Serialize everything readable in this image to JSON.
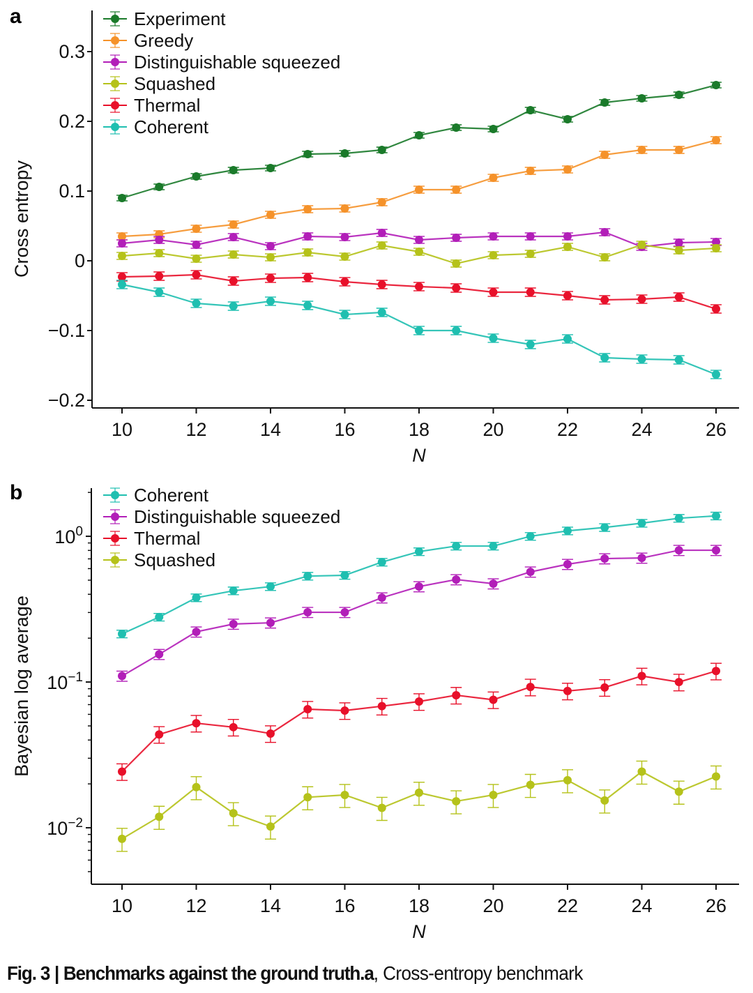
{
  "caption": {
    "figure": "Fig. 3",
    "separator": "|",
    "bold_title": "Benchmarks against the ground truth.",
    "panel_ref": "a",
    "text": ", Cross-entropy benchmark"
  },
  "chart_data": [
    {
      "panel": "a",
      "type": "line",
      "title": "",
      "xlabel": "N",
      "ylabel": "Cross entropy",
      "x": [
        10,
        11,
        12,
        13,
        14,
        15,
        16,
        17,
        18,
        19,
        20,
        21,
        22,
        23,
        24,
        25,
        26
      ],
      "xticks": [
        10,
        12,
        14,
        16,
        18,
        20,
        22,
        24,
        26
      ],
      "xlim": [
        9.2,
        26.6
      ],
      "yticks": [
        -0.2,
        -0.1,
        0,
        0.1,
        0.2,
        0.3
      ],
      "ytick_labels": [
        "−0.2",
        "−0.1",
        "0",
        "0.1",
        "0.2",
        "0.3"
      ],
      "ylim": [
        -0.211,
        0.359
      ],
      "yscale": "linear",
      "error_bars": true,
      "legend_position": "top-left",
      "series": [
        {
          "name": "Experiment",
          "color": "#1a7a2a",
          "values": [
            0.09,
            0.106,
            0.121,
            0.13,
            0.133,
            0.153,
            0.154,
            0.159,
            0.18,
            0.191,
            0.189,
            0.216,
            0.203,
            0.227,
            0.233,
            0.238,
            0.252
          ],
          "error": 0.004
        },
        {
          "name": "Greedy",
          "color": "#f5922a",
          "values": [
            0.035,
            0.038,
            0.046,
            0.052,
            0.066,
            0.074,
            0.075,
            0.084,
            0.102,
            0.102,
            0.119,
            0.129,
            0.131,
            0.152,
            0.159,
            0.159,
            0.173
          ],
          "error": 0.005
        },
        {
          "name": "Distinguishable squeezed",
          "color": "#b21eb8",
          "values": [
            0.025,
            0.03,
            0.023,
            0.034,
            0.021,
            0.035,
            0.034,
            0.04,
            0.03,
            0.033,
            0.035,
            0.035,
            0.035,
            0.041,
            0.02,
            0.026,
            0.027
          ],
          "error": 0.005
        },
        {
          "name": "Squashed",
          "color": "#b5c21a",
          "values": [
            0.007,
            0.011,
            0.003,
            0.009,
            0.005,
            0.012,
            0.006,
            0.022,
            0.013,
            -0.004,
            0.008,
            0.01,
            0.02,
            0.005,
            0.023,
            0.015,
            0.018
          ],
          "error": 0.005
        },
        {
          "name": "Thermal",
          "color": "#e8102a",
          "values": [
            -0.023,
            -0.022,
            -0.02,
            -0.029,
            -0.025,
            -0.024,
            -0.03,
            -0.034,
            -0.037,
            -0.039,
            -0.045,
            -0.045,
            -0.05,
            -0.056,
            -0.055,
            -0.052,
            -0.069
          ],
          "error": 0.006
        },
        {
          "name": "Coherent",
          "color": "#1fbfb0",
          "values": [
            -0.034,
            -0.045,
            -0.061,
            -0.065,
            -0.058,
            -0.064,
            -0.077,
            -0.074,
            -0.1,
            -0.1,
            -0.111,
            -0.12,
            -0.112,
            -0.139,
            -0.141,
            -0.142,
            -0.163
          ],
          "error": 0.006
        }
      ]
    },
    {
      "panel": "b",
      "type": "line",
      "title": "",
      "xlabel": "N",
      "ylabel": "Bayesian log average",
      "x": [
        10,
        11,
        12,
        13,
        14,
        15,
        16,
        17,
        18,
        19,
        20,
        21,
        22,
        23,
        24,
        25,
        26
      ],
      "xticks": [
        10,
        12,
        14,
        16,
        18,
        20,
        22,
        24,
        26
      ],
      "xlim": [
        9.2,
        26.6
      ],
      "yticks": [
        0.01,
        0.1,
        1
      ],
      "ytick_labels": [
        {
          "base": "10",
          "exp": "−2"
        },
        {
          "base": "10",
          "exp": "−1"
        },
        {
          "base": "10",
          "exp": "0"
        }
      ],
      "ylim": [
        0.0041,
        2.14
      ],
      "yscale": "log",
      "error_bars": true,
      "legend_position": "top-left",
      "series": [
        {
          "name": "Coherent",
          "color": "#1fbfb0",
          "values": [
            0.214,
            0.279,
            0.379,
            0.423,
            0.452,
            0.533,
            0.54,
            0.665,
            0.785,
            0.857,
            0.857,
            1.0,
            1.09,
            1.15,
            1.23,
            1.33,
            1.38
          ],
          "rel_error": 0.06
        },
        {
          "name": "Distinguishable squeezed",
          "color": "#b21eb8",
          "values": [
            0.11,
            0.155,
            0.221,
            0.25,
            0.255,
            0.301,
            0.301,
            0.379,
            0.452,
            0.505,
            0.473,
            0.57,
            0.643,
            0.703,
            0.71,
            0.802,
            0.802
          ],
          "rel_error": 0.08
        },
        {
          "name": "Thermal",
          "color": "#e8102a",
          "values": [
            0.0243,
            0.0437,
            0.0522,
            0.049,
            0.0443,
            0.0651,
            0.0637,
            0.0683,
            0.0735,
            0.0812,
            0.0756,
            0.0925,
            0.0868,
            0.0918,
            0.11,
            0.1,
            0.119
          ],
          "rel_error": 0.13
        },
        {
          "name": "Squashed",
          "color": "#b5c21a",
          "values": [
            0.0084,
            0.0119,
            0.019,
            0.0126,
            0.0102,
            0.0162,
            0.0168,
            0.0137,
            0.0174,
            0.0152,
            0.0168,
            0.0197,
            0.0212,
            0.0154,
            0.0243,
            0.0177,
            0.0225
          ],
          "rel_error": 0.18
        }
      ]
    }
  ]
}
